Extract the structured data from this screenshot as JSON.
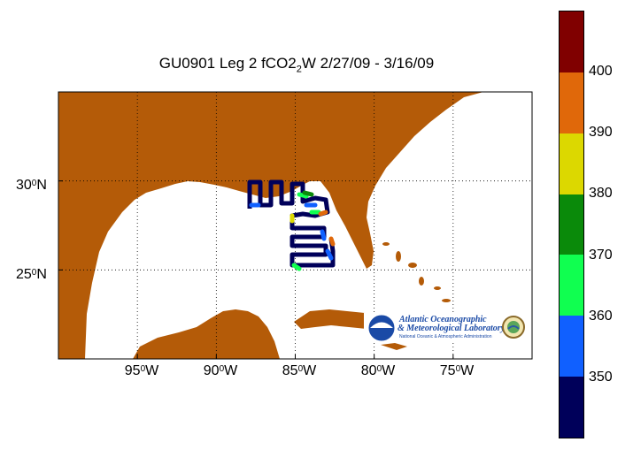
{
  "title": {
    "main": "GU0901 Leg 2 fCO2",
    "subscript": "2",
    "rest": "W 2/27/09 - 3/16/09"
  },
  "map": {
    "lon_range": [
      -100,
      -70
    ],
    "lat_range": [
      20,
      35
    ],
    "land_color": "#b45b08",
    "water_color": "#ffffff",
    "grid": true,
    "grid_style": "dotted",
    "x_ticks": [
      {
        "base": "95",
        "sup": "0",
        "suffix": "W",
        "lon": -95
      },
      {
        "base": "90",
        "sup": "0",
        "suffix": "W",
        "lon": -90
      },
      {
        "base": "85",
        "sup": "0",
        "suffix": "W",
        "lon": -85
      },
      {
        "base": "80",
        "sup": "0",
        "suffix": "W",
        "lon": -80
      },
      {
        "base": "75",
        "sup": "0",
        "suffix": "W",
        "lon": -75
      }
    ],
    "y_ticks": [
      {
        "base": "30",
        "sup": "0",
        "suffix": "N",
        "lat": 30
      },
      {
        "base": "25",
        "sup": "0",
        "suffix": "N",
        "lat": 25
      }
    ]
  },
  "colorbar": {
    "colors": [
      "#800000",
      "#e0680a",
      "#dcd800",
      "#0a8a0a",
      "#10ff50",
      "#1060ff",
      "#00005a"
    ],
    "labels": [
      "400",
      "390",
      "380",
      "370",
      "360",
      "350"
    ]
  },
  "logo": {
    "line1": "Atlantic Oceanographic",
    "line2": "& Meteorological Laboratory",
    "line3": "National Oceanic & Atmospheric Administration"
  }
}
